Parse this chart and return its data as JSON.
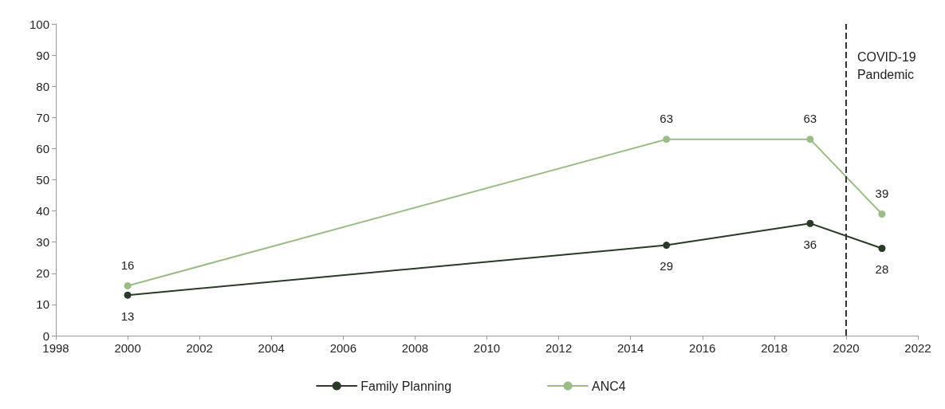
{
  "chart_data": {
    "type": "line",
    "x": [
      2000,
      2015,
      2019,
      2021
    ],
    "series": [
      {
        "name": "Family Planning",
        "color": "#2b3a28",
        "values": [
          13,
          29,
          36,
          28
        ]
      },
      {
        "name": "ANC4",
        "color": "#9dbb87",
        "values": [
          16,
          63,
          63,
          39
        ]
      }
    ],
    "xlim": [
      1998,
      2022
    ],
    "xticks": [
      1998,
      2000,
      2002,
      2004,
      2006,
      2008,
      2010,
      2012,
      2014,
      2016,
      2018,
      2020,
      2022
    ],
    "ylim": [
      0,
      100
    ],
    "yticks": [
      0,
      10,
      20,
      30,
      40,
      50,
      60,
      70,
      80,
      90,
      100
    ],
    "ref_lines": [
      {
        "axis": "x",
        "value": 2020,
        "label": "COVID-19 Pandemic",
        "color": "#333333",
        "line_style": "dashed"
      }
    ],
    "data_labels": true,
    "grid": false,
    "legend": "bottom",
    "marker": "circle",
    "line_style": "solid"
  }
}
